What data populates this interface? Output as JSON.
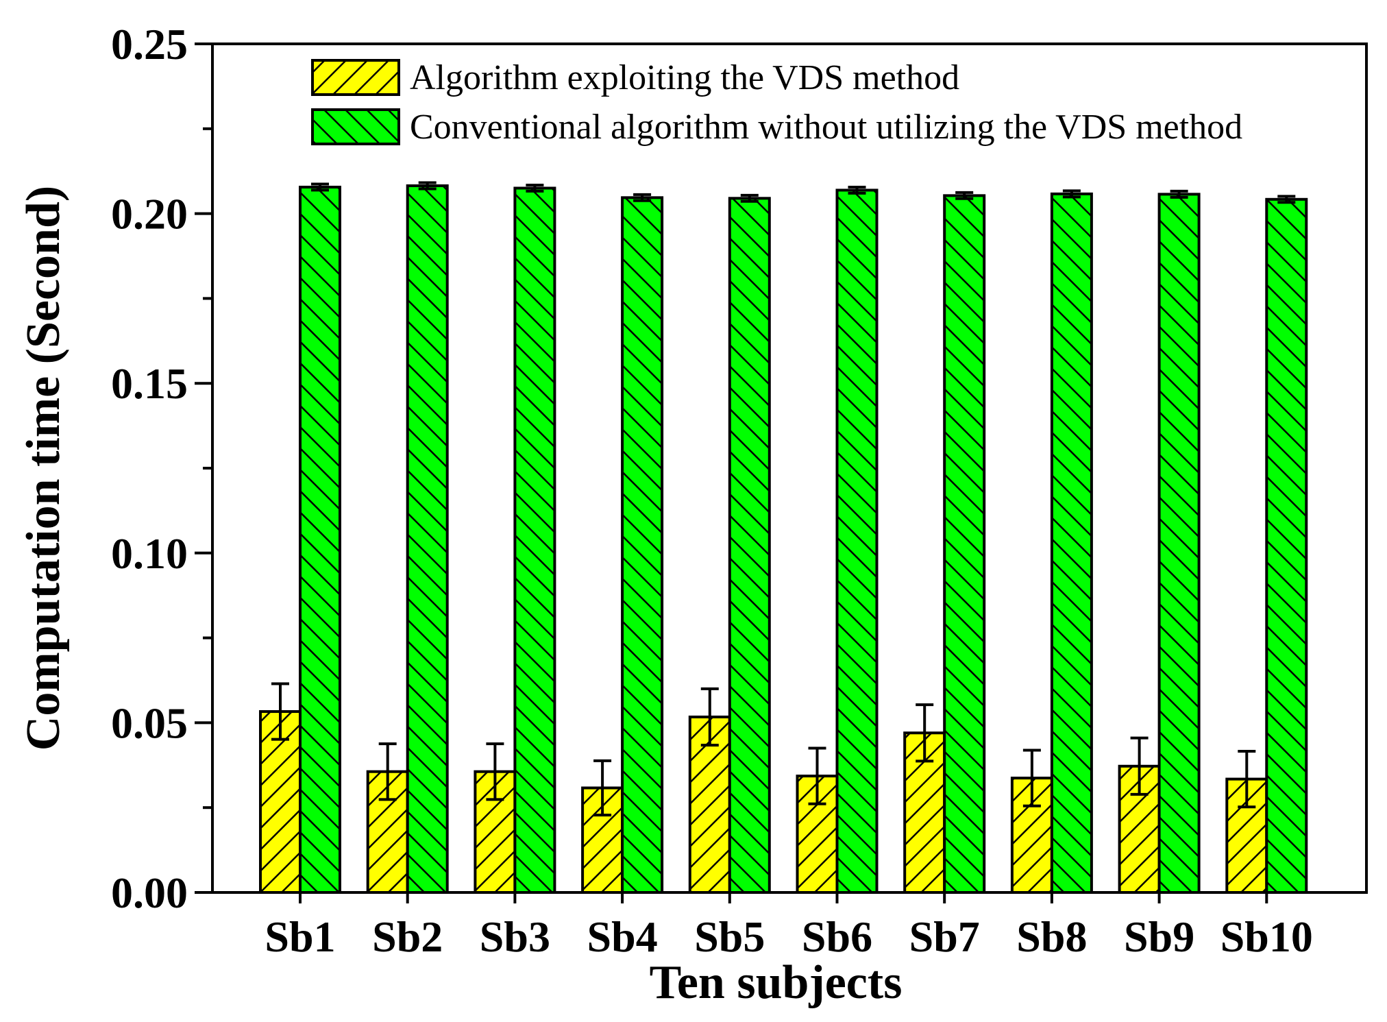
{
  "chart_data": {
    "type": "bar",
    "title": "",
    "xlabel": "Ten subjects",
    "ylabel": "Computation time (Second)",
    "ylim": [
      0,
      0.25
    ],
    "yticks": [
      "0.00",
      "0.05",
      "0.10",
      "0.15",
      "0.20",
      "0.25"
    ],
    "ytick_values": [
      0,
      0.05,
      0.1,
      0.15,
      0.2,
      0.25
    ],
    "grid": false,
    "legend_position": "top",
    "categories": [
      "Sb1",
      "Sb2",
      "Sb3",
      "Sb4",
      "Sb5",
      "Sb6",
      "Sb7",
      "Sb8",
      "Sb9",
      "Sb10"
    ],
    "series": [
      {
        "name": "Algorithm exploiting the VDS method",
        "color": "#ffff00",
        "hatch": "forward-diagonal",
        "values": [
          0.0533,
          0.0356,
          0.0356,
          0.0308,
          0.0517,
          0.0343,
          0.047,
          0.0337,
          0.0372,
          0.0334
        ],
        "errors": [
          0.0082,
          0.0082,
          0.0082,
          0.008,
          0.0083,
          0.0082,
          0.0083,
          0.0082,
          0.0083,
          0.0082
        ]
      },
      {
        "name": "Conventional algorithm without utilizing the VDS method",
        "color": "#00ff00",
        "hatch": "back-diagonal",
        "values": [
          0.2078,
          0.2082,
          0.2075,
          0.2047,
          0.2045,
          0.2069,
          0.2053,
          0.2058,
          0.2057,
          0.2042
        ],
        "errors": [
          0.0009,
          0.0009,
          0.0009,
          0.0009,
          0.0009,
          0.0009,
          0.0009,
          0.0009,
          0.0009,
          0.0009
        ]
      }
    ]
  }
}
